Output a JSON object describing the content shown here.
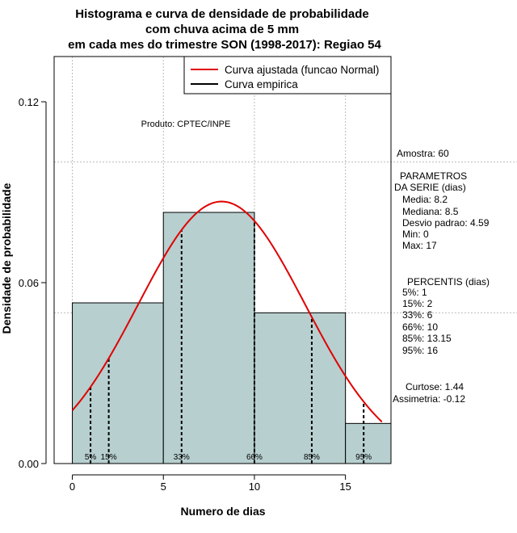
{
  "chart_data": {
    "type": "bar",
    "title_lines": [
      "Histograma e curva de densidade de probabilidade",
      "com chuva acima de 5 mm",
      "em cada mes do trimestre SON (1998-2017): Regiao 54"
    ],
    "xlabel": "Numero de dias",
    "ylabel": "Densidade de probabilidade",
    "xlim": [
      -1,
      17.5
    ],
    "ylim": [
      0,
      0.135
    ],
    "x_ticks": [
      0,
      5,
      10,
      15
    ],
    "y_ticks": [
      {
        "value": 0.0,
        "label": "0.00"
      },
      {
        "value": 0.06,
        "label": "0.06"
      },
      {
        "value": 0.12,
        "label": "0.12"
      }
    ],
    "grid_x": [
      0,
      5,
      10,
      15
    ],
    "grid_y": [
      0.1,
      0.05
    ],
    "bins": [
      {
        "x0": 0,
        "x1": 5,
        "density": 0.0533
      },
      {
        "x0": 5,
        "x1": 10,
        "density": 0.0833
      },
      {
        "x0": 10,
        "x1": 15,
        "density": 0.05
      },
      {
        "x0": 15,
        "x1": 17.5,
        "density": 0.0133
      }
    ],
    "bar_color": "#b7cfcf",
    "fitted_curve": {
      "name": "Curva ajustada (funcao Normal)",
      "mean": 8.2,
      "sd": 4.59,
      "x_from": 0,
      "x_to": 17,
      "color": "#e00000"
    },
    "empirical_curve": {
      "name": "Curva empirica",
      "color": "#000000"
    },
    "percentiles": [
      {
        "label": "5%",
        "x": 1
      },
      {
        "label": "15%",
        "x": 2
      },
      {
        "label": "33%",
        "x": 6
      },
      {
        "label": "66%",
        "x": 10
      },
      {
        "label": "85%",
        "x": 13.15
      },
      {
        "label": "95%",
        "x": 16
      }
    ],
    "legend_position": "top-right",
    "annotation": "Produto: CPTEC/INPE"
  },
  "stats_panel": {
    "amostra": "Amostra: 60",
    "parametros_title_1": "PARAMETROS",
    "parametros_title_2": "DA SERIE (dias)",
    "media": "Media: 8.2",
    "mediana": "Mediana: 8.5",
    "desvio": "Desvio padrao: 4.59",
    "min": "Min: 0",
    "max": "Max: 17",
    "percentis_title": "PERCENTIS (dias)",
    "p5": "5%: 1",
    "p15": "15%: 2",
    "p33": "33%: 6",
    "p66": "66%: 10",
    "p85": "85%: 13.15",
    "p95": "95%: 16",
    "curtose": "Curtose: 1.44",
    "assimetria": "Assimetria: -0.12"
  }
}
